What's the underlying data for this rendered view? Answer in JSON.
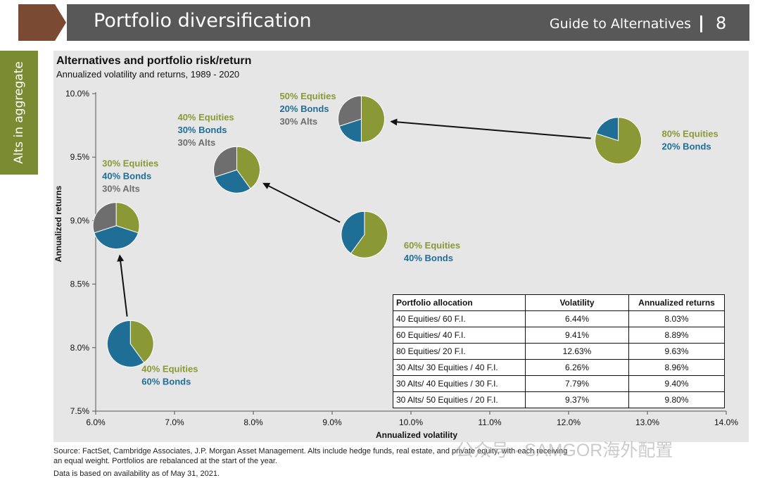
{
  "header": {
    "title": "Portfolio diversification",
    "guide": "Guide to Alternatives",
    "page_number": "8"
  },
  "side_tab": {
    "label": "Alts in aggregate"
  },
  "colors": {
    "header_bar": "#585858",
    "header_arrow": "#7b4a33",
    "side_tab": "#7a8b31",
    "equities": "#8a9836",
    "bonds": "#1f6e96",
    "alts": "#6e6e6e",
    "panel": "#e6e6e6"
  },
  "chart_data": {
    "type": "scatter",
    "title": "Alternatives and portfolio risk/return",
    "subtitle": "Annualized volatility and returns, 1989 - 2020",
    "xlabel": "Annualized volatility",
    "ylabel": "Annualized returns",
    "xlim": [
      6.0,
      14.0
    ],
    "ylim": [
      7.5,
      10.0
    ],
    "x_ticks": [
      6.0,
      7.0,
      8.0,
      9.0,
      10.0,
      11.0,
      12.0,
      13.0,
      14.0
    ],
    "y_ticks": [
      7.5,
      8.0,
      8.5,
      9.0,
      9.5,
      10.0
    ],
    "x_tick_labels": [
      "6.0%",
      "7.0%",
      "8.0%",
      "9.0%",
      "10.0%",
      "11.0%",
      "12.0%",
      "13.0%",
      "14.0%"
    ],
    "y_tick_labels": [
      "7.5%",
      "8.0%",
      "8.5%",
      "9.0%",
      "9.5%",
      "10.0%"
    ],
    "grid": false,
    "points": [
      {
        "id": "p40-60",
        "x": 6.44,
        "y": 8.03,
        "equities": 40,
        "bonds": 60,
        "alts": 0,
        "labels": [
          {
            "text": "40% Equities",
            "kind": "equities"
          },
          {
            "text": "60% Bonds",
            "kind": "bonds"
          }
        ]
      },
      {
        "id": "p60-40",
        "x": 9.41,
        "y": 8.89,
        "equities": 60,
        "bonds": 40,
        "alts": 0,
        "labels": [
          {
            "text": "60% Equities",
            "kind": "equities"
          },
          {
            "text": "40% Bonds",
            "kind": "bonds"
          }
        ]
      },
      {
        "id": "p80-20",
        "x": 12.63,
        "y": 9.63,
        "equities": 80,
        "bonds": 20,
        "alts": 0,
        "labels": [
          {
            "text": "80% Equities",
            "kind": "equities"
          },
          {
            "text": "20% Bonds",
            "kind": "bonds"
          }
        ]
      },
      {
        "id": "a30-30-40",
        "x": 6.26,
        "y": 8.96,
        "equities": 30,
        "bonds": 40,
        "alts": 30,
        "labels": [
          {
            "text": "30% Equities",
            "kind": "equities"
          },
          {
            "text": "40% Bonds",
            "kind": "bonds"
          },
          {
            "text": "30% Alts",
            "kind": "alts"
          }
        ]
      },
      {
        "id": "a30-40-30",
        "x": 7.79,
        "y": 9.4,
        "equities": 40,
        "bonds": 30,
        "alts": 30,
        "labels": [
          {
            "text": "40% Equities",
            "kind": "equities"
          },
          {
            "text": "30% Bonds",
            "kind": "bonds"
          },
          {
            "text": "30% Alts",
            "kind": "alts"
          }
        ]
      },
      {
        "id": "a30-50-20",
        "x": 9.37,
        "y": 9.8,
        "equities": 50,
        "bonds": 20,
        "alts": 30,
        "labels": [
          {
            "text": "50% Equities",
            "kind": "equities"
          },
          {
            "text": "20% Bonds",
            "kind": "bonds"
          },
          {
            "text": "30% Alts",
            "kind": "alts"
          }
        ]
      }
    ],
    "arrows": [
      {
        "from": "p40-60",
        "to": "a30-30-40"
      },
      {
        "from": "p60-40",
        "to": "a30-40-30"
      },
      {
        "from": "p80-20",
        "to": "a30-50-20"
      }
    ],
    "table": {
      "headers": [
        "Portfolio allocation",
        "Volatility",
        "Annualized returns"
      ],
      "rows": [
        [
          "40 Equities/ 60 F.I.",
          "6.44%",
          "8.03%"
        ],
        [
          "60 Equities/ 40 F.I.",
          "9.41%",
          "8.89%"
        ],
        [
          "80 Equities/ 20 F.I.",
          "12.63%",
          "9.63%"
        ],
        [
          "30 Alts/ 30 Equities / 40 F.I.",
          "6.26%",
          "8.96%"
        ],
        [
          "30 Alts/ 40 Equities / 30 F.I.",
          "7.79%",
          "9.40%"
        ],
        [
          "30 Alts/ 50 Equities / 20 F.I.",
          "9.37%",
          "9.80%"
        ]
      ]
    }
  },
  "footnotes": {
    "source_line1": "Source: FactSet, Cambridge Associates, J.P. Morgan Asset Management. Alts include hedge funds, real estate, and private equity, with each receiving",
    "source_line2": "an equal weight. Portfolios are rebalanced at the start of the year.",
    "availability": "Data is based on availability as of May 31, 2021."
  },
  "watermark": "公众号 · SAMGOR海外配置"
}
